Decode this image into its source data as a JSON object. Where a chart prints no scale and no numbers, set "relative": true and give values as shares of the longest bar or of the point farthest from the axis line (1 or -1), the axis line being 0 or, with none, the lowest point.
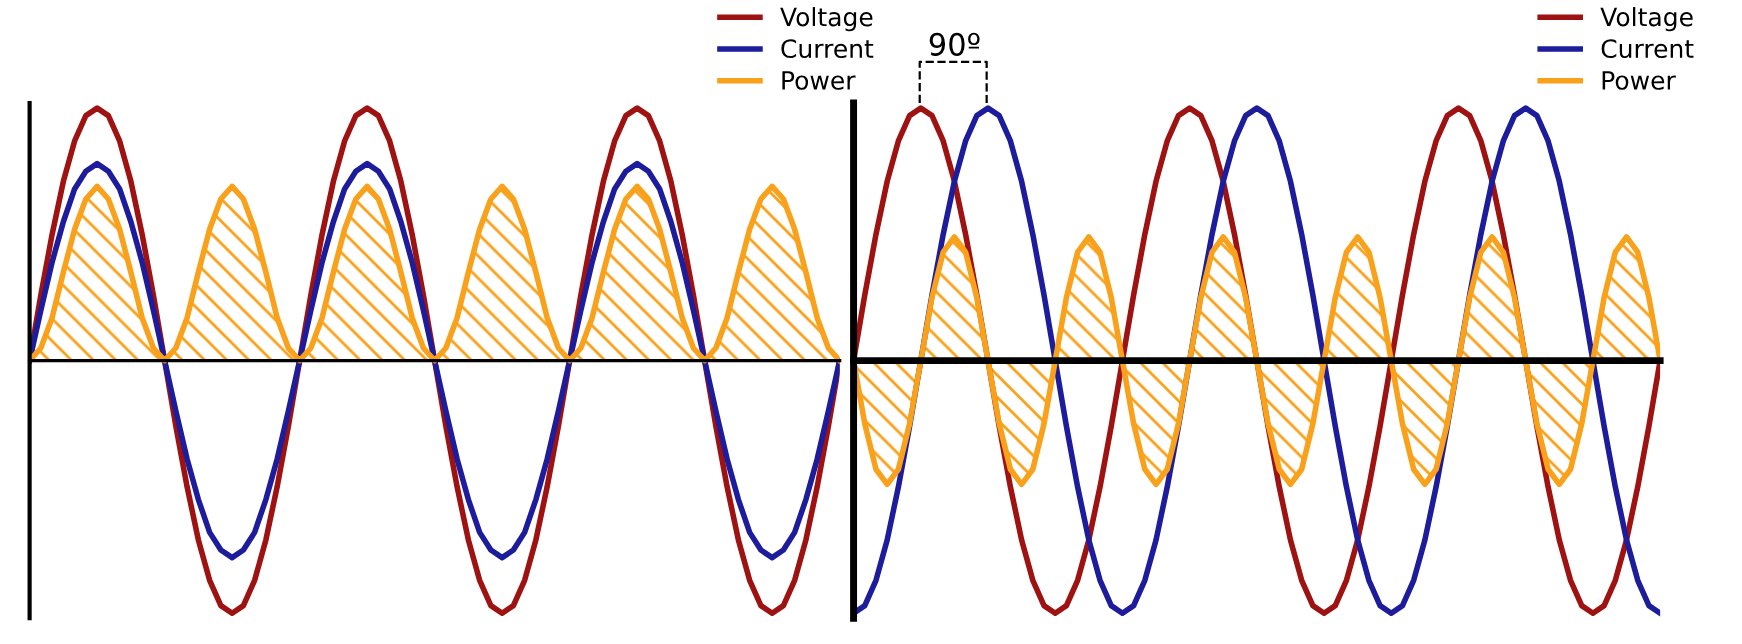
{
  "chart_data": [
    {
      "type": "line",
      "relative": true,
      "tick_labels": false,
      "legend": "top right",
      "categories": [
        null,
        null,
        null,
        null,
        null,
        null,
        null,
        null,
        null,
        null,
        null,
        null,
        null,
        null,
        null,
        null,
        null,
        null,
        null,
        null,
        null,
        null,
        null,
        null,
        null,
        null,
        null,
        null,
        null,
        null,
        null,
        null,
        null,
        null,
        null,
        null,
        null,
        null,
        null,
        null,
        null,
        null,
        null,
        null,
        null,
        null,
        null,
        null,
        null,
        null,
        null,
        null,
        null,
        null,
        null,
        null,
        null,
        null,
        null,
        null,
        null,
        null,
        null,
        null,
        null,
        null,
        null,
        null,
        null,
        null,
        null,
        null,
        null
      ],
      "series": [
        {
          "name": "Voltage",
          "color": "#9e1212",
          "values": [
            0,
            0.26,
            0.5,
            0.71,
            0.87,
            0.97,
            1,
            0.97,
            0.87,
            0.71,
            0.5,
            0.26,
            0,
            -0.26,
            -0.5,
            -0.71,
            -0.87,
            -0.97,
            -1,
            -0.97,
            -0.87,
            -0.71,
            -0.5,
            -0.26,
            0,
            0.26,
            0.5,
            0.71,
            0.87,
            0.97,
            1,
            0.97,
            0.87,
            0.71,
            0.5,
            0.26,
            0,
            -0.26,
            -0.5,
            -0.71,
            -0.87,
            -0.97,
            -1,
            -0.97,
            -0.87,
            -0.71,
            -0.5,
            -0.26,
            0,
            0.26,
            0.5,
            0.71,
            0.87,
            0.97,
            1,
            0.97,
            0.87,
            0.71,
            0.5,
            0.26,
            0,
            -0.26,
            -0.5,
            -0.71,
            -0.87,
            -0.97,
            -1,
            -0.97,
            -0.87,
            -0.71,
            -0.5,
            -0.26,
            0
          ]
        },
        {
          "name": "Current",
          "color": "#1c1c9c",
          "values": [
            0,
            0.2,
            0.39,
            0.55,
            0.68,
            0.75,
            0.78,
            0.75,
            0.68,
            0.55,
            0.39,
            0.2,
            0,
            -0.2,
            -0.39,
            -0.55,
            -0.68,
            -0.75,
            -0.78,
            -0.75,
            -0.68,
            -0.55,
            -0.39,
            -0.2,
            0,
            0.2,
            0.39,
            0.55,
            0.68,
            0.75,
            0.78,
            0.75,
            0.68,
            0.55,
            0.39,
            0.2,
            0,
            -0.2,
            -0.39,
            -0.55,
            -0.68,
            -0.75,
            -0.78,
            -0.75,
            -0.68,
            -0.55,
            -0.39,
            -0.2,
            0,
            0.2,
            0.39,
            0.55,
            0.68,
            0.75,
            0.78,
            0.75,
            0.68,
            0.55,
            0.39,
            0.2,
            0,
            -0.2,
            -0.39,
            -0.55,
            -0.68,
            -0.75,
            -0.78,
            -0.75,
            -0.68,
            -0.55,
            -0.39,
            -0.2,
            0
          ]
        },
        {
          "name": "Power",
          "color": "#f9a11b",
          "type": "area",
          "values": [
            0,
            0.05,
            0.17,
            0.35,
            0.52,
            0.64,
            0.69,
            0.64,
            0.52,
            0.35,
            0.17,
            0.05,
            0,
            0.05,
            0.17,
            0.35,
            0.52,
            0.64,
            0.69,
            0.64,
            0.52,
            0.35,
            0.17,
            0.05,
            0,
            0.05,
            0.17,
            0.35,
            0.52,
            0.64,
            0.69,
            0.64,
            0.52,
            0.35,
            0.17,
            0.05,
            0,
            0.05,
            0.17,
            0.35,
            0.52,
            0.64,
            0.69,
            0.64,
            0.52,
            0.35,
            0.17,
            0.05,
            0,
            0.05,
            0.17,
            0.35,
            0.52,
            0.64,
            0.69,
            0.64,
            0.52,
            0.35,
            0.17,
            0.05,
            0,
            0.05,
            0.17,
            0.35,
            0.52,
            0.64,
            0.69,
            0.64,
            0.52,
            0.35,
            0.17,
            0.05,
            0
          ]
        }
      ]
    },
    {
      "type": "line",
      "relative": true,
      "tick_labels": false,
      "legend": "top right",
      "annotations": [
        "90º"
      ],
      "categories": [
        null,
        null,
        null,
        null,
        null,
        null,
        null,
        null,
        null,
        null,
        null,
        null,
        null,
        null,
        null,
        null,
        null,
        null,
        null,
        null,
        null,
        null,
        null,
        null,
        null,
        null,
        null,
        null,
        null,
        null,
        null,
        null,
        null,
        null,
        null,
        null,
        null,
        null,
        null,
        null,
        null,
        null,
        null,
        null,
        null,
        null,
        null,
        null,
        null,
        null,
        null,
        null,
        null,
        null,
        null,
        null,
        null,
        null,
        null,
        null,
        null,
        null,
        null,
        null,
        null,
        null,
        null,
        null,
        null,
        null,
        null,
        null,
        null
      ],
      "series": [
        {
          "name": "Voltage",
          "color": "#9e1212",
          "values": [
            0,
            0.26,
            0.5,
            0.71,
            0.87,
            0.97,
            1,
            0.97,
            0.87,
            0.71,
            0.5,
            0.26,
            0,
            -0.26,
            -0.5,
            -0.71,
            -0.87,
            -0.97,
            -1,
            -0.97,
            -0.87,
            -0.71,
            -0.5,
            -0.26,
            0,
            0.26,
            0.5,
            0.71,
            0.87,
            0.97,
            1,
            0.97,
            0.87,
            0.71,
            0.5,
            0.26,
            0,
            -0.26,
            -0.5,
            -0.71,
            -0.87,
            -0.97,
            -1,
            -0.97,
            -0.87,
            -0.71,
            -0.5,
            -0.26,
            0,
            0.26,
            0.5,
            0.71,
            0.87,
            0.97,
            1,
            0.97,
            0.87,
            0.71,
            0.5,
            0.26,
            0,
            -0.26,
            -0.5,
            -0.71,
            -0.87,
            -0.97,
            -1,
            -0.97,
            -0.87,
            -0.71,
            -0.5,
            -0.26,
            0
          ]
        },
        {
          "name": "Current",
          "color": "#1c1c9c",
          "values": [
            -1,
            -0.97,
            -0.87,
            -0.71,
            -0.5,
            -0.26,
            0,
            0.26,
            0.5,
            0.71,
            0.87,
            0.97,
            1,
            0.97,
            0.87,
            0.71,
            0.5,
            0.26,
            0,
            -0.26,
            -0.5,
            -0.71,
            -0.87,
            -0.97,
            -1,
            -0.97,
            -0.87,
            -0.71,
            -0.5,
            -0.26,
            0,
            0.26,
            0.5,
            0.71,
            0.87,
            0.97,
            1,
            0.97,
            0.87,
            0.71,
            0.5,
            0.26,
            0,
            -0.26,
            -0.5,
            -0.71,
            -0.87,
            -0.97,
            -1,
            -0.97,
            -0.87,
            -0.71,
            -0.5,
            -0.26,
            0,
            0.26,
            0.5,
            0.71,
            0.87,
            0.97,
            1,
            0.97,
            0.87,
            0.71,
            0.5,
            0.26,
            0,
            -0.26,
            -0.5,
            -0.71,
            -0.87,
            -0.97,
            -1
          ]
        },
        {
          "name": "Power",
          "color": "#f9a11b",
          "type": "area",
          "values": [
            0,
            -0.25,
            -0.43,
            -0.49,
            -0.43,
            -0.25,
            0,
            0.25,
            0.43,
            0.49,
            0.43,
            0.25,
            0,
            -0.25,
            -0.43,
            -0.49,
            -0.43,
            -0.25,
            0,
            0.25,
            0.43,
            0.49,
            0.43,
            0.25,
            0,
            -0.25,
            -0.43,
            -0.49,
            -0.43,
            -0.25,
            0,
            0.25,
            0.43,
            0.49,
            0.43,
            0.25,
            0,
            -0.25,
            -0.43,
            -0.49,
            -0.43,
            -0.25,
            0,
            0.25,
            0.43,
            0.49,
            0.43,
            0.25,
            0,
            -0.25,
            -0.43,
            -0.49,
            -0.43,
            -0.25,
            0,
            0.25,
            0.43,
            0.49,
            0.43,
            0.25,
            0,
            -0.25,
            -0.43,
            -0.49,
            -0.43,
            -0.25,
            0,
            0.25,
            0.43,
            0.49,
            0.43,
            0.25,
            0
          ]
        }
      ]
    }
  ]
}
